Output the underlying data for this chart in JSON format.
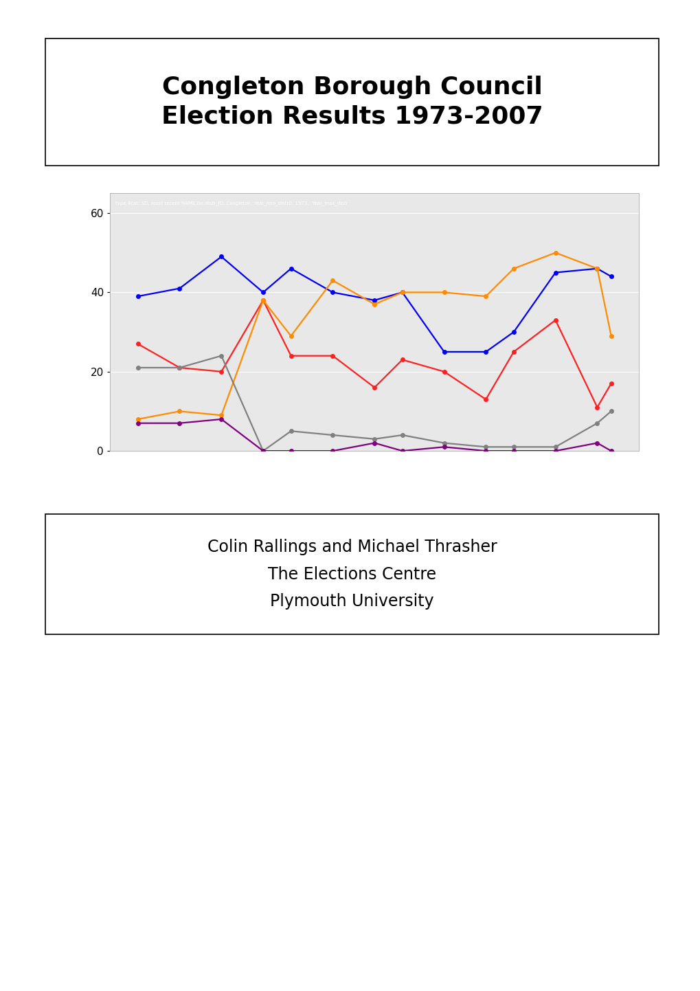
{
  "title": "Congleton Borough Council\nElection Results 1973-2007",
  "subtitle": "Colin Rallings and Michael Thrasher\nThe Elections Centre\nPlymouth University",
  "watermark": "type 4cat: SD, most recent NAME for distr_ID: Congleton, Year_min_distr0: 1973,  Year_max_distr",
  "years_con": [
    1973,
    1976,
    1979,
    1982,
    1984,
    1987,
    1990,
    1992,
    1995,
    1998,
    2000,
    2003,
    2006,
    2007
  ],
  "values_con": [
    39,
    41,
    49,
    40,
    46,
    40,
    38,
    40,
    25,
    25,
    30,
    45,
    46,
    44
  ],
  "years_lab": [
    1973,
    1976,
    1979,
    1982,
    1984,
    1987,
    1990,
    1992,
    1995,
    1998,
    2000,
    2003,
    2006,
    2007
  ],
  "values_lab": [
    27,
    21,
    20,
    38,
    24,
    24,
    16,
    23,
    20,
    13,
    25,
    33,
    11,
    17
  ],
  "years_lib": [
    1973,
    1976,
    1979,
    1982,
    1984,
    1987,
    1990,
    1992,
    1995,
    1998,
    2000,
    2003,
    2006,
    2007
  ],
  "values_lib": [
    8,
    10,
    9,
    38,
    29,
    43,
    37,
    40,
    40,
    39,
    46,
    50,
    46,
    29
  ],
  "years_ind": [
    1973,
    1976,
    1979,
    1982,
    1984,
    1987,
    1990,
    1992,
    1995,
    1998,
    2000,
    2003,
    2006,
    2007
  ],
  "values_ind": [
    21,
    21,
    24,
    0,
    5,
    4,
    3,
    4,
    2,
    1,
    1,
    1,
    7,
    10
  ],
  "years_oth": [
    1973,
    1976,
    1979,
    1982,
    1984,
    1987,
    1990,
    1992,
    1995,
    1998,
    2000,
    2003,
    2006,
    2007
  ],
  "values_oth": [
    7,
    7,
    8,
    0,
    0,
    0,
    2,
    0,
    1,
    0,
    0,
    0,
    2,
    0
  ],
  "color_con": "#0000FF",
  "color_lab": "#FF2020",
  "color_lib": "#FF8C00",
  "color_ind": "#808080",
  "color_oth": "#800080",
  "ylim": [
    0,
    65
  ],
  "yticks": [
    0,
    20,
    40,
    60
  ],
  "xlim": [
    1971,
    2009
  ]
}
